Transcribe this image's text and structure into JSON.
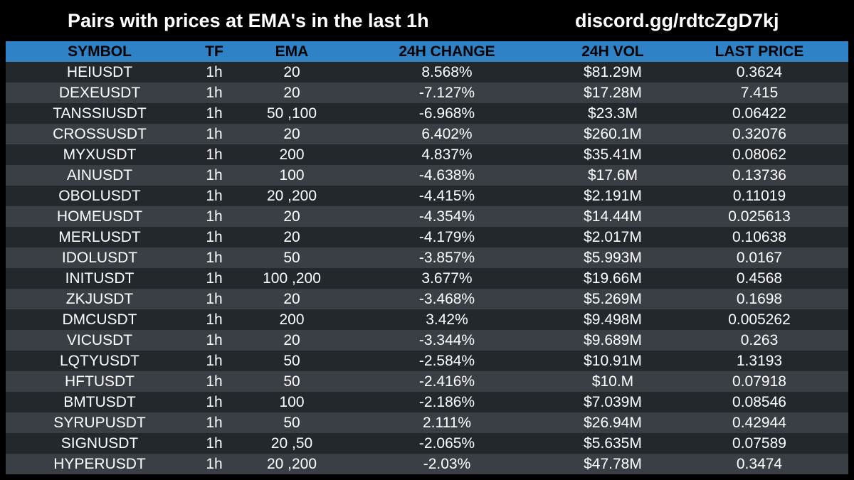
{
  "header": {
    "title": "Pairs with prices at EMA's in the last 1h",
    "link": "discord.gg/rdtcZgD7kj"
  },
  "table": {
    "columns": [
      "SYMBOL",
      "TF",
      "EMA",
      "24H CHANGE",
      "24H VOL",
      "LAST PRICE"
    ],
    "rows": [
      [
        "HEIUSDT",
        "1h",
        "20",
        "8.568%",
        "$81.29M",
        "0.3624"
      ],
      [
        "DEXEUSDT",
        "1h",
        "20",
        "-7.127%",
        "$17.28M",
        "7.415"
      ],
      [
        "TANSSIUSDT",
        "1h",
        "50 ,100",
        "-6.968%",
        "$23.3M",
        "0.06422"
      ],
      [
        "CROSSUSDT",
        "1h",
        "20",
        "6.402%",
        "$260.1M",
        "0.32076"
      ],
      [
        "MYXUSDT",
        "1h",
        "200",
        "4.837%",
        "$35.41M",
        "0.08062"
      ],
      [
        "AINUSDT",
        "1h",
        "100",
        "-4.638%",
        "$17.6M",
        "0.13736"
      ],
      [
        "OBOLUSDT",
        "1h",
        "20 ,200",
        "-4.415%",
        "$2.191M",
        "0.11019"
      ],
      [
        "HOMEUSDT",
        "1h",
        "20",
        "-4.354%",
        "$14.44M",
        "0.025613"
      ],
      [
        "MERLUSDT",
        "1h",
        "20",
        "-4.179%",
        "$2.017M",
        "0.10638"
      ],
      [
        "IDOLUSDT",
        "1h",
        "50",
        "-3.857%",
        "$5.993M",
        "0.0167"
      ],
      [
        "INITUSDT",
        "1h",
        "100 ,200",
        "3.677%",
        "$19.66M",
        "0.4568"
      ],
      [
        "ZKJUSDT",
        "1h",
        "20",
        "-3.468%",
        "$5.269M",
        "0.1698"
      ],
      [
        "DMCUSDT",
        "1h",
        "200",
        "3.42%",
        "$9.498M",
        "0.005262"
      ],
      [
        "VICUSDT",
        "1h",
        "20",
        "-3.344%",
        "$9.689M",
        "0.263"
      ],
      [
        "LQTYUSDT",
        "1h",
        "50",
        "-2.584%",
        "$10.91M",
        "1.3193"
      ],
      [
        "HFTUSDT",
        "1h",
        "50",
        "-2.416%",
        "$10.M",
        "0.07918"
      ],
      [
        "BMTUSDT",
        "1h",
        "100",
        "-2.186%",
        "$7.039M",
        "0.08546"
      ],
      [
        "SYRUPUSDT",
        "1h",
        "50",
        "2.111%",
        "$26.94M",
        "0.42944"
      ],
      [
        "SIGNUSDT",
        "1h",
        "20 ,50",
        "-2.065%",
        "$5.635M",
        "0.07589"
      ],
      [
        "HYPERUSDT",
        "1h",
        "20 ,200",
        "-2.03%",
        "$47.78M",
        "0.3474"
      ]
    ]
  },
  "colors": {
    "header_bg": "#000000",
    "table_header_bg": "#2f82c5",
    "row_dark": "#23282d",
    "row_light": "#3a3f45",
    "text": "#ffffff"
  }
}
